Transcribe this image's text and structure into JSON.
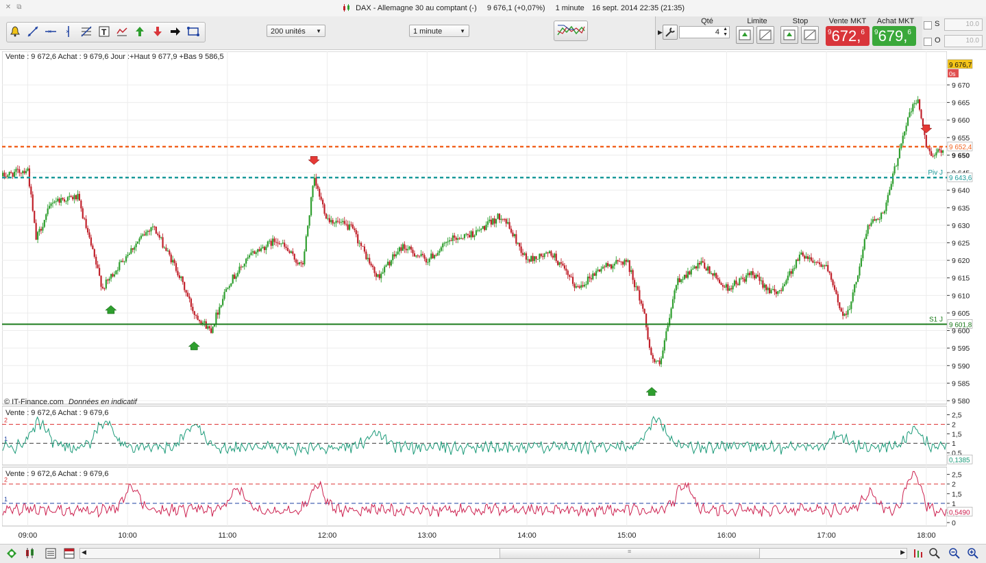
{
  "window": {
    "instrument": "DAX - Allemagne 30 au comptant (-)",
    "quote": "9 676,1 (+0,07%)",
    "interval": "1 minute",
    "datetime": "16 sept. 2014 22:35 (21:35)"
  },
  "toolbar": {
    "units_select": "200 unités",
    "interval_select": "1 minute",
    "tools": [
      "bell-icon",
      "line-tool-icon",
      "hline-tool-icon",
      "vline-tool-icon",
      "fibonacci-icon",
      "text-tool-icon",
      "indicator-icon",
      "buy-arrow-icon",
      "sell-arrow-icon",
      "pointer-icon",
      "zoom-rect-icon"
    ]
  },
  "order_panel": {
    "qty_label": "Qté",
    "qty_value": "4",
    "limit_label": "Limite",
    "stop_label": "Stop",
    "sell_label": "Vente MKT",
    "buy_label": "Achat MKT",
    "sell_prefix": "9",
    "sell_main": "672,",
    "sell_suffix": "6",
    "buy_prefix": "9",
    "buy_main": "679,",
    "buy_suffix": "6",
    "sell_color": "#d9353a",
    "buy_color": "#3aa83a",
    "s_label": "S",
    "o_label": "O",
    "s_value": "10.0",
    "o_value": "10.0"
  },
  "main_chart": {
    "info": "Vente : 9 672,6 Achat : 9 679,6 Jour :+Haut 9 677,9 +Bas 9 586,5",
    "copyright": "© IT-Finance.com",
    "copyright_note": "Données en indicatif",
    "price_ticks": [
      "9 670",
      "9 665",
      "9 660",
      "9 655",
      "9 650",
      "9 645",
      "9 640",
      "9 635",
      "9 630",
      "9 625",
      "9 620",
      "9 615",
      "9 610",
      "9 605",
      "9 600",
      "9 595",
      "9 590",
      "9 585",
      "9 580"
    ],
    "last_price": "9 676,7",
    "last_sub": "0s",
    "orange_level": "9 652,4",
    "piv_label": "Piv J",
    "piv_value": "9 643,6",
    "s1_label": "S1 J",
    "s1_value": "9 601,8",
    "up_color": "#2e9e2e",
    "down_color": "#c0202a"
  },
  "panel1": {
    "info": "Vente : 9 672,6 Achat : 9 679,6",
    "ticks": [
      "2,5",
      "2",
      "1,5",
      "1",
      "0,5"
    ],
    "level2": "2",
    "level1": "1",
    "value": "0,1385",
    "color": "#1a9a78"
  },
  "panel2": {
    "info": "Vente : 9 672,6 Achat : 9 679,6",
    "ticks": [
      "2,5",
      "2",
      "1,5",
      "1",
      "0,5",
      "0"
    ],
    "level2": "2",
    "level1": "1",
    "value": "0,5490",
    "color": "#cc1f4e"
  },
  "time_axis": [
    "09:00",
    "10:00",
    "11:00",
    "12:00",
    "13:00",
    "14:00",
    "15:00",
    "16:00",
    "17:00",
    "18:00"
  ],
  "chart_data": {
    "type": "line",
    "title": "DAX - Allemagne 30 au comptant (-)",
    "xlabel": "",
    "ylabel": "",
    "ylim": [
      9580,
      9678
    ],
    "x": [
      "08:45",
      "09:00",
      "09:05",
      "09:15",
      "09:30",
      "09:45",
      "10:00",
      "10:15",
      "10:30",
      "10:40",
      "10:50",
      "11:00",
      "11:15",
      "11:30",
      "11:45",
      "11:52",
      "12:00",
      "12:15",
      "12:30",
      "12:45",
      "13:00",
      "13:15",
      "13:30",
      "13:45",
      "14:00",
      "14:15",
      "14:30",
      "14:45",
      "15:00",
      "15:10",
      "15:15",
      "15:20",
      "15:30",
      "15:45",
      "16:00",
      "16:15",
      "16:30",
      "16:45",
      "17:00",
      "17:10",
      "17:15",
      "17:25",
      "17:35",
      "17:45",
      "17:50",
      "17:55",
      "18:00",
      "18:05",
      "18:10"
    ],
    "series": [
      {
        "values": [
          9644,
          9646,
          9626,
          9637,
          9638,
          9612,
          9622,
          9630,
          9617,
          9605,
          9600,
          9613,
          9622,
          9626,
          9618,
          9643,
          9632,
          9629,
          9615,
          9624,
          9620,
          9626,
          9628,
          9633,
          9620,
          9622,
          9612,
          9618,
          9620,
          9606,
          9592,
          9590,
          9614,
          9619,
          9612,
          9616,
          9610,
          9622,
          9618,
          9604,
          9608,
          9630,
          9634,
          9654,
          9662,
          9666,
          9652,
          9650,
          9652
        ]
      }
    ],
    "markers": [
      {
        "type": "sell",
        "x": "11:52"
      },
      {
        "type": "buy",
        "x": "09:50"
      },
      {
        "type": "buy",
        "x": "10:40"
      },
      {
        "type": "buy",
        "x": "15:15"
      },
      {
        "type": "sell",
        "x": "18:00"
      }
    ],
    "levels": [
      {
        "name": "Piv J",
        "value": 9643.6
      },
      {
        "name": "S1 J",
        "value": 9601.8
      },
      {
        "name": "",
        "value": 9652.4
      }
    ]
  }
}
